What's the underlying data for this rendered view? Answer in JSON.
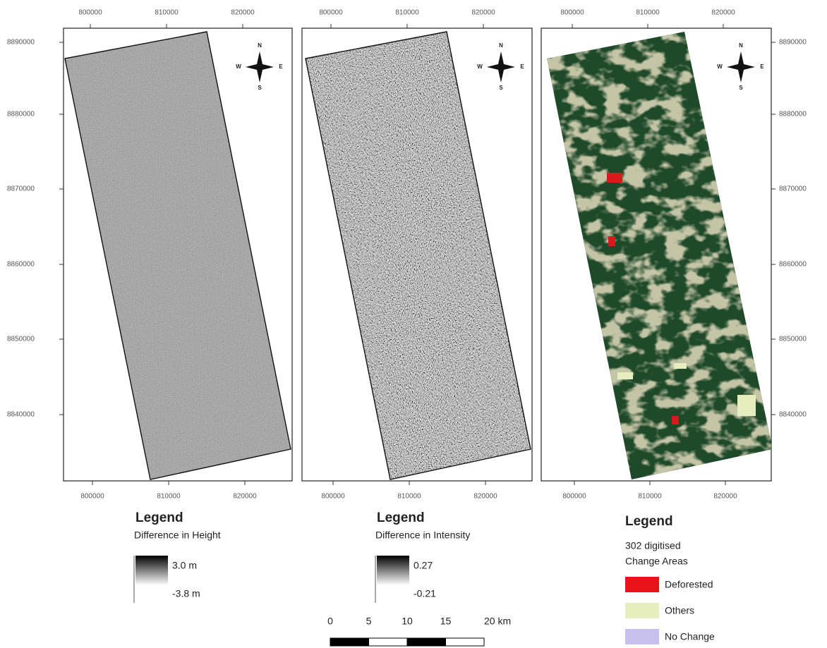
{
  "panels": [
    {
      "top_ticks": [
        "800000",
        "810000",
        "820000"
      ],
      "bottom_ticks": [
        "800000",
        "810000",
        "820000"
      ]
    },
    {
      "top_ticks": [
        "800000",
        "810000",
        "820000"
      ],
      "bottom_ticks": [
        "800000",
        "810000",
        "820000"
      ]
    },
    {
      "top_ticks": [
        "800000",
        "810000",
        "820000"
      ],
      "bottom_ticks": [
        "800000",
        "810000",
        "820000"
      ]
    }
  ],
  "left_ticks": [
    "8890000",
    "8880000",
    "8870000",
    "8860000",
    "8850000",
    "8840000"
  ],
  "right_ticks": [
    "8890000",
    "8880000",
    "8870000",
    "8860000",
    "8850000",
    "8840000"
  ],
  "compass": {
    "n": "N",
    "s": "S",
    "w": "W",
    "e": "E"
  },
  "legend_height": {
    "title": "Legend",
    "subtitle": "Difference in Height",
    "high": "3.0 m",
    "low": "-3.8 m"
  },
  "legend_intensity": {
    "title": "Legend",
    "subtitle": "Difference in Intensity",
    "high": "0.27",
    "low": "-0.21"
  },
  "legend_change": {
    "title": "Legend",
    "subtitle": [
      "302 digitised",
      "Change Areas"
    ],
    "items": [
      "Deforested",
      "Others",
      "No Change"
    ]
  },
  "scale_bar": {
    "labels": [
      "0",
      "5",
      "10",
      "15",
      "20 km"
    ]
  }
}
